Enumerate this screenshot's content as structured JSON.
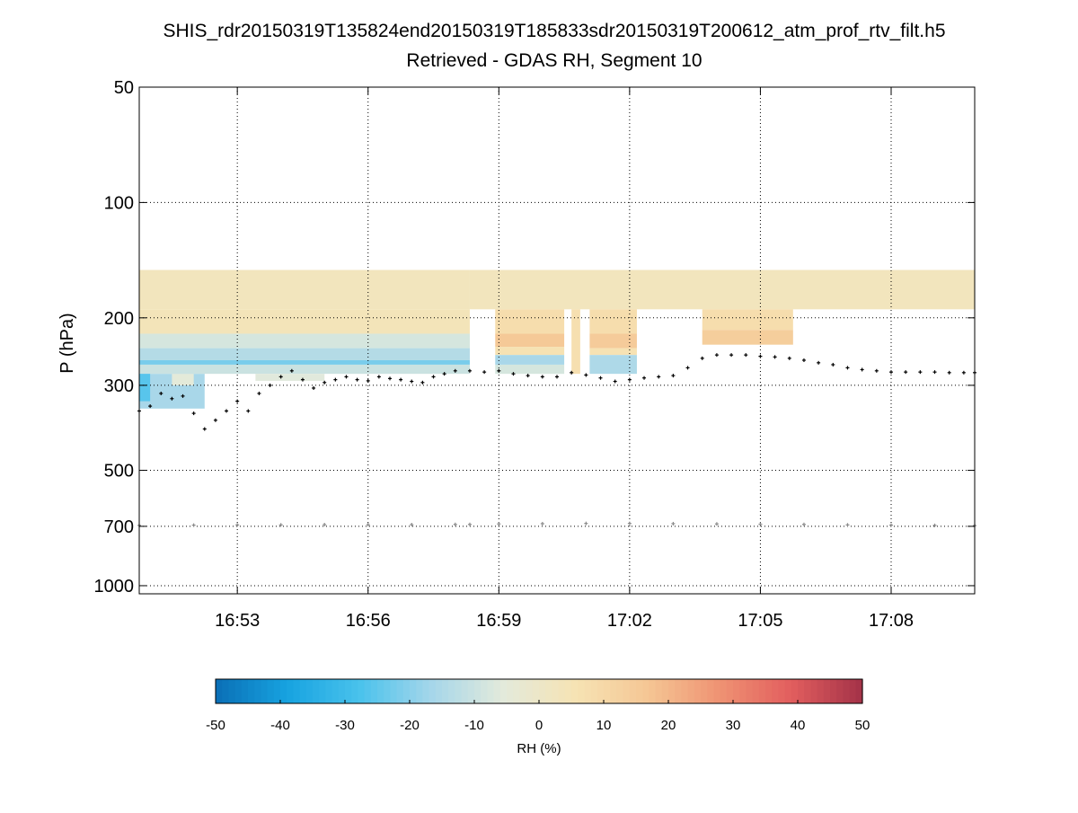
{
  "title": "SHIS_rdr20150319T135824end20150319T185833sdr20150319T200612_atm_prof_rtv_filt.h5",
  "subtitle": "Retrieved - GDAS RH, Segment 10",
  "colors": {
    "cmap": [
      "#0a6fb6",
      "#17a3e0",
      "#49c2ec",
      "#a5d6ea",
      "#e3eadb",
      "#f6e3b4",
      "#f5c795",
      "#ef9373",
      "#e25e5e",
      "#a33248"
    ],
    "black_marker": "#000000",
    "gray_marker": "#8a8a8a"
  },
  "chart_data": {
    "type": "heatmap",
    "title": "SHIS_rdr20150319T135824end20150319T185833sdr20150319T200612_atm_prof_rtv_filt.h5",
    "subtitle": "Retrieved - GDAS RH, Segment 10",
    "xlabel": "",
    "ylabel": "P (hPa)",
    "x_axis": {
      "type": "time",
      "range": [
        "16:50:45",
        "17:09:55"
      ],
      "ticks": [
        "16:53",
        "16:56",
        "16:59",
        "17:02",
        "17:05",
        "17:08"
      ],
      "grid": true
    },
    "y_axis": {
      "type": "log",
      "reversed": true,
      "range": [
        50,
        1050
      ],
      "ticks": [
        50,
        100,
        200,
        300,
        500,
        700,
        1000
      ],
      "grid": true
    },
    "colorbar": {
      "label": "RH (%)",
      "range": [
        -50,
        50
      ],
      "ticks": [
        -50,
        -40,
        -30,
        -20,
        -10,
        0,
        10,
        20,
        30,
        40,
        50
      ],
      "placement": "bottom"
    },
    "heatmap_blocks": [
      {
        "t0": "16:50:45",
        "t1": "16:58:20",
        "p_top": 150,
        "p_bot": 190,
        "rh": 3
      },
      {
        "t0": "16:58:20",
        "t1": "17:09:55",
        "p_top": 150,
        "p_bot": 190,
        "rh": 3
      },
      {
        "t0": "16:50:45",
        "t1": "16:58:20",
        "p_top": 190,
        "p_bot": 220,
        "rh": 4
      },
      {
        "t0": "16:50:45",
        "t1": "16:58:20",
        "p_top": 220,
        "p_bot": 240,
        "rh": -8
      },
      {
        "t0": "16:50:45",
        "t1": "16:58:20",
        "p_top": 240,
        "p_bot": 258,
        "rh": -14
      },
      {
        "t0": "16:50:45",
        "t1": "16:58:20",
        "p_top": 258,
        "p_bot": 265,
        "rh": -22
      },
      {
        "t0": "16:50:45",
        "t1": "16:58:20",
        "p_top": 265,
        "p_bot": 280,
        "rh": -10
      },
      {
        "t0": "16:50:45",
        "t1": "16:52:15",
        "p_top": 280,
        "p_bot": 345,
        "rh": -16
      },
      {
        "t0": "16:50:45",
        "t1": "16:51:00",
        "p_top": 280,
        "p_bot": 330,
        "rh": -26
      },
      {
        "t0": "16:51:30",
        "t1": "16:52:00",
        "p_top": 280,
        "p_bot": 300,
        "rh": -5
      },
      {
        "t0": "16:53:25",
        "t1": "16:55:00",
        "p_top": 280,
        "p_bot": 292,
        "rh": -6
      },
      {
        "t0": "16:58:55",
        "t1": "17:00:30",
        "p_top": 190,
        "p_bot": 220,
        "rh": 8
      },
      {
        "t0": "16:58:55",
        "t1": "17:00:30",
        "p_top": 220,
        "p_bot": 238,
        "rh": 16
      },
      {
        "t0": "16:58:55",
        "t1": "17:00:30",
        "p_top": 238,
        "p_bot": 250,
        "rh": 6
      },
      {
        "t0": "16:58:55",
        "t1": "17:00:30",
        "p_top": 250,
        "p_bot": 265,
        "rh": -16
      },
      {
        "t0": "16:58:55",
        "t1": "17:00:30",
        "p_top": 265,
        "p_bot": 280,
        "rh": -8
      },
      {
        "t0": "17:01:05",
        "t1": "17:02:10",
        "p_top": 190,
        "p_bot": 220,
        "rh": 8
      },
      {
        "t0": "17:01:05",
        "t1": "17:02:10",
        "p_top": 220,
        "p_bot": 240,
        "rh": 15
      },
      {
        "t0": "17:01:05",
        "t1": "17:02:10",
        "p_top": 240,
        "p_bot": 250,
        "rh": 6
      },
      {
        "t0": "17:01:05",
        "t1": "17:02:10",
        "p_top": 250,
        "p_bot": 280,
        "rh": -15
      },
      {
        "t0": "17:00:40",
        "t1": "17:00:52",
        "p_top": 190,
        "p_bot": 280,
        "rh": 7
      },
      {
        "t0": "17:03:40",
        "t1": "17:05:45",
        "p_top": 190,
        "p_bot": 215,
        "rh": 8
      },
      {
        "t0": "17:03:40",
        "t1": "17:05:45",
        "p_top": 215,
        "p_bot": 235,
        "rh": 14
      }
    ],
    "series": [
      {
        "marker": "dot",
        "color": "#000000",
        "x": [
          "16:50:45",
          "16:51:00",
          "16:51:15",
          "16:51:30",
          "16:51:45",
          "16:52:00",
          "16:52:15",
          "16:52:30",
          "16:52:45",
          "16:53:00",
          "16:53:15",
          "16:53:30",
          "16:53:45",
          "16:54:00",
          "16:54:15",
          "16:54:30",
          "16:54:45",
          "16:55:00",
          "16:55:15",
          "16:55:30",
          "16:55:45",
          "16:56:00",
          "16:56:15",
          "16:56:30",
          "16:56:45",
          "16:57:00",
          "16:57:15",
          "16:57:30",
          "16:57:45",
          "16:58:00",
          "16:58:20",
          "16:58:40",
          "16:59:00",
          "16:59:20",
          "16:59:40",
          "17:00:00",
          "17:00:20",
          "17:00:40",
          "17:01:00",
          "17:01:20",
          "17:01:40",
          "17:02:00",
          "17:02:20",
          "17:02:40",
          "17:03:00",
          "17:03:20",
          "17:03:40",
          "17:04:00",
          "17:04:20",
          "17:04:40",
          "17:05:00",
          "17:05:20",
          "17:05:40",
          "17:06:00",
          "17:06:20",
          "17:06:40",
          "17:07:00",
          "17:07:20",
          "17:07:40",
          "17:08:00",
          "17:08:20",
          "17:08:40",
          "17:09:00",
          "17:09:20",
          "17:09:40",
          "17:09:55"
        ],
        "y": [
          350,
          340,
          315,
          325,
          320,
          355,
          390,
          370,
          350,
          330,
          350,
          315,
          300,
          285,
          275,
          290,
          305,
          295,
          290,
          285,
          290,
          292,
          285,
          288,
          290,
          293,
          295,
          285,
          280,
          275,
          275,
          277,
          275,
          280,
          283,
          285,
          285,
          278,
          282,
          287,
          293,
          290,
          287,
          285,
          283,
          270,
          255,
          250,
          250,
          250,
          252,
          253,
          255,
          258,
          262,
          265,
          270,
          273,
          275,
          277,
          277,
          277,
          277,
          278,
          278,
          278
        ]
      },
      {
        "marker": "dot",
        "color": "#8a8a8a",
        "x": [
          "16:50:45",
          "16:52:00",
          "16:53:00",
          "16:54:00",
          "16:55:00",
          "16:56:00",
          "16:57:00",
          "16:58:00",
          "16:58:20",
          "16:59:00",
          "17:00:00",
          "17:01:00",
          "17:02:00",
          "17:03:00",
          "17:04:00",
          "17:05:00",
          "17:06:00",
          "17:07:00",
          "17:08:00",
          "17:09:00",
          "17:09:55"
        ],
        "y": [
          696,
          695,
          694,
          694,
          693,
          693,
          693,
          692,
          692,
          690,
          689,
          688,
          688,
          689,
          690,
          691,
          692,
          694,
          695,
          696,
          697
        ]
      }
    ]
  }
}
